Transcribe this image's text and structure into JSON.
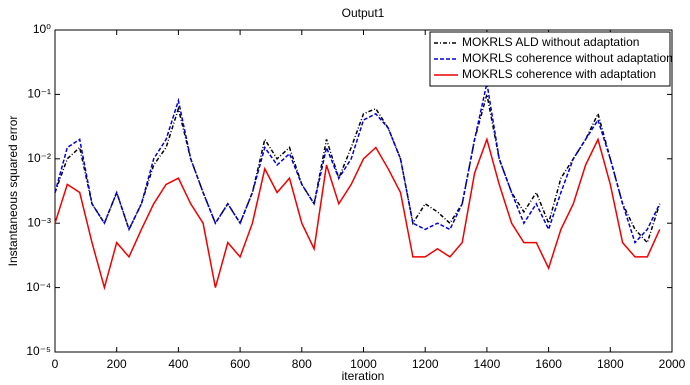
{
  "chart_data": {
    "type": "line",
    "title": "Output1",
    "xlabel": "iteration",
    "ylabel": "Instantaneous squared error",
    "log_y": true,
    "legend": "upper right",
    "xlim": [
      0,
      2000
    ],
    "xticks": [
      0,
      200,
      400,
      600,
      800,
      1000,
      1200,
      1400,
      1600,
      1800,
      2000
    ],
    "ylim": [
      1e-05,
      1
    ],
    "yticks": [
      {
        "value": 1e-05,
        "label": "10⁻⁵"
      },
      {
        "value": 0.0001,
        "label": "10⁻⁴"
      },
      {
        "value": 0.001,
        "label": "10⁻³"
      },
      {
        "value": 0.01,
        "label": "10⁻²"
      },
      {
        "value": 0.1,
        "label": "10⁻¹"
      },
      {
        "value": 1,
        "label": "10⁰"
      }
    ],
    "x": [
      0,
      40,
      80,
      120,
      160,
      200,
      240,
      280,
      320,
      360,
      400,
      440,
      480,
      520,
      560,
      600,
      640,
      680,
      720,
      760,
      800,
      840,
      880,
      920,
      960,
      1000,
      1040,
      1080,
      1120,
      1160,
      1200,
      1240,
      1280,
      1320,
      1360,
      1400,
      1440,
      1480,
      1520,
      1560,
      1600,
      1640,
      1680,
      1720,
      1760,
      1800,
      1840,
      1880,
      1920,
      1960
    ],
    "series": [
      {
        "name": "MOKRLS ALD without adaptation",
        "color": "#000000",
        "linestyle": "dashdot",
        "values": [
          0.003,
          0.01,
          0.015,
          0.002,
          0.001,
          0.003,
          0.0008,
          0.002,
          0.008,
          0.015,
          0.06,
          0.01,
          0.003,
          0.001,
          0.002,
          0.001,
          0.003,
          0.02,
          0.01,
          0.015,
          0.004,
          0.002,
          0.02,
          0.005,
          0.015,
          0.05,
          0.06,
          0.03,
          0.01,
          0.001,
          0.002,
          0.0015,
          0.001,
          0.002,
          0.02,
          0.1,
          0.01,
          0.003,
          0.0015,
          0.003,
          0.001,
          0.005,
          0.01,
          0.02,
          0.05,
          0.01,
          0.002,
          0.0008,
          0.0005,
          0.002
        ]
      },
      {
        "name": "MOKRLS coherence without adaptation",
        "color": "#0000dd",
        "linestyle": "dashed",
        "values": [
          0.003,
          0.015,
          0.02,
          0.002,
          0.001,
          0.003,
          0.0008,
          0.002,
          0.01,
          0.02,
          0.08,
          0.01,
          0.003,
          0.001,
          0.002,
          0.001,
          0.003,
          0.015,
          0.008,
          0.012,
          0.004,
          0.002,
          0.015,
          0.005,
          0.01,
          0.04,
          0.05,
          0.03,
          0.01,
          0.001,
          0.0008,
          0.001,
          0.0008,
          0.002,
          0.02,
          0.15,
          0.01,
          0.003,
          0.001,
          0.002,
          0.0008,
          0.003,
          0.01,
          0.02,
          0.04,
          0.01,
          0.002,
          0.0005,
          0.0008,
          0.002
        ]
      },
      {
        "name": "MOKRLS coherence with adaptation",
        "color": "#ee0000",
        "linestyle": "solid",
        "values": [
          0.001,
          0.004,
          0.003,
          0.0005,
          0.0001,
          0.0005,
          0.0003,
          0.0008,
          0.002,
          0.004,
          0.005,
          0.002,
          0.001,
          0.0001,
          0.0005,
          0.0003,
          0.001,
          0.007,
          0.003,
          0.005,
          0.001,
          0.0004,
          0.008,
          0.002,
          0.004,
          0.01,
          0.015,
          0.007,
          0.003,
          0.0003,
          0.0003,
          0.0004,
          0.0003,
          0.0005,
          0.006,
          0.02,
          0.004,
          0.001,
          0.0005,
          0.0005,
          0.0002,
          0.0008,
          0.002,
          0.008,
          0.02,
          0.004,
          0.0005,
          0.0003,
          0.0003,
          0.0008
        ]
      }
    ]
  }
}
